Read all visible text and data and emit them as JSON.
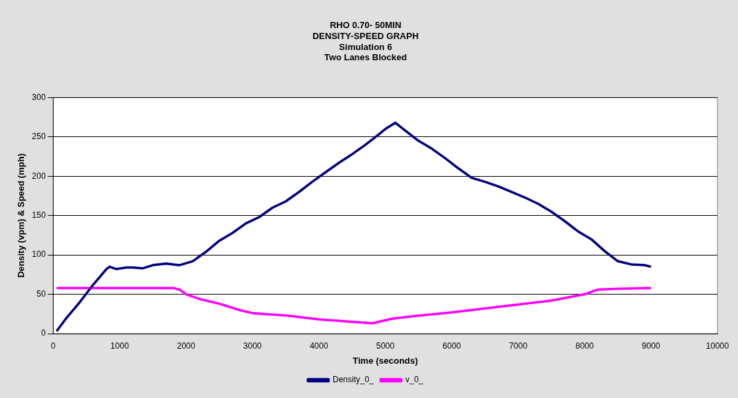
{
  "chart_data": {
    "type": "line",
    "title": "RHO 0.70- 50MIN\nDENSITY-SPEED GRAPH\nSimulation 6\nTwo Lanes Blocked",
    "xlabel": "Time (seconds)",
    "ylabel": "Density (vpm) & Speed (mph)",
    "xlim": [
      0,
      10000
    ],
    "xticks": [
      0,
      1000,
      2000,
      3000,
      4000,
      5000,
      6000,
      7000,
      8000,
      9000,
      10000
    ],
    "ylim": [
      0,
      300
    ],
    "yticks": [
      0,
      50,
      100,
      150,
      200,
      250,
      300
    ],
    "grid": "y",
    "legend": "bottom",
    "marker": "none",
    "line_style": "solid",
    "series": [
      {
        "name": "Density_0_",
        "color": "#000080",
        "x": [
          50,
          200,
          400,
          600,
          800,
          850,
          950,
          1100,
          1200,
          1350,
          1500,
          1700,
          1900,
          2100,
          2300,
          2500,
          2700,
          2900,
          3100,
          3300,
          3500,
          3700,
          3900,
          4100,
          4300,
          4500,
          4700,
          4900,
          5000,
          5150,
          5300,
          5500,
          5700,
          5900,
          6100,
          6300,
          6500,
          6700,
          6900,
          7100,
          7300,
          7500,
          7700,
          7900,
          8100,
          8300,
          8500,
          8700,
          8900,
          9000
        ],
        "values": [
          3,
          20,
          40,
          62,
          82,
          85,
          82,
          84,
          84,
          83,
          87,
          89,
          87,
          92,
          104,
          118,
          128,
          140,
          148,
          160,
          168,
          180,
          193,
          205,
          217,
          228,
          240,
          253,
          260,
          268,
          258,
          245,
          235,
          223,
          210,
          198,
          193,
          187,
          180,
          173,
          165,
          155,
          143,
          130,
          120,
          105,
          92,
          88,
          87,
          85
        ]
      },
      {
        "name": "v_0_",
        "color": "#ff00ff",
        "x": [
          50,
          1800,
          1900,
          2000,
          2200,
          2500,
          2800,
          3000,
          3500,
          4000,
          4500,
          4800,
          4900,
          5100,
          5400,
          6000,
          6500,
          7000,
          7500,
          8000,
          8200,
          8500,
          9000
        ],
        "values": [
          58,
          58,
          56,
          50,
          44,
          38,
          30,
          26,
          23,
          18,
          15,
          13,
          15,
          19,
          22,
          27,
          32,
          37,
          42,
          50,
          56,
          57,
          58
        ]
      }
    ]
  }
}
